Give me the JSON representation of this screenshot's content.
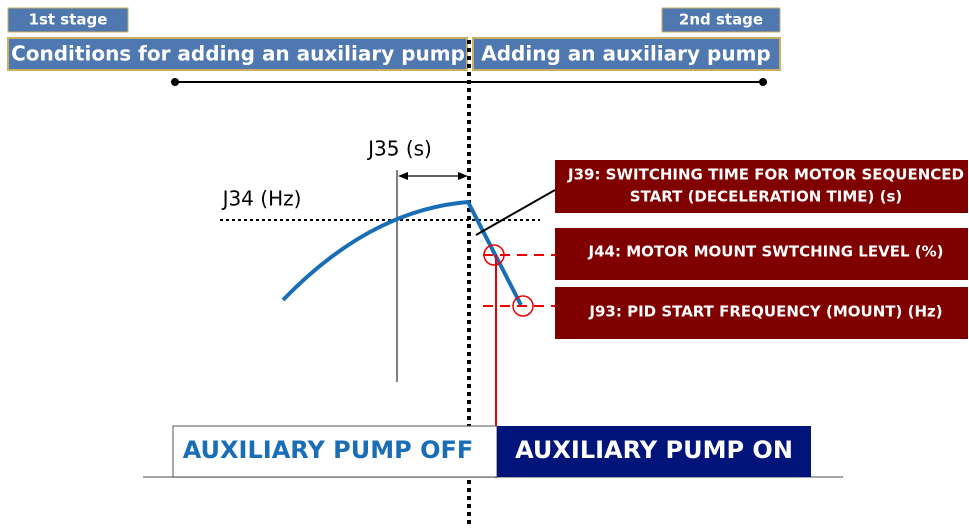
{
  "stages": {
    "first": "1st stage",
    "second": "2nd stage"
  },
  "phases": {
    "first": "Conditions for adding an auxiliary pump",
    "second": "Adding an auxiliary pump"
  },
  "labels": {
    "j35": "J35 (s)",
    "j34": "J34 (Hz)"
  },
  "callouts": [
    {
      "lines": [
        "J39: SWITCHING TIME FOR MOTOR SEQUENCED",
        "START (DECELERATION TIME) (s)"
      ]
    },
    {
      "lines": [
        "J44: MOTOR MOUNT SWTCHING LEVEL (%)"
      ]
    },
    {
      "lines": [
        "J93: PID START FREQUENCY (MOUNT) (Hz)"
      ]
    }
  ],
  "states": {
    "off": "AUXILIARY PUMP OFF",
    "on": "AUXILIARY PUMP ON"
  }
}
